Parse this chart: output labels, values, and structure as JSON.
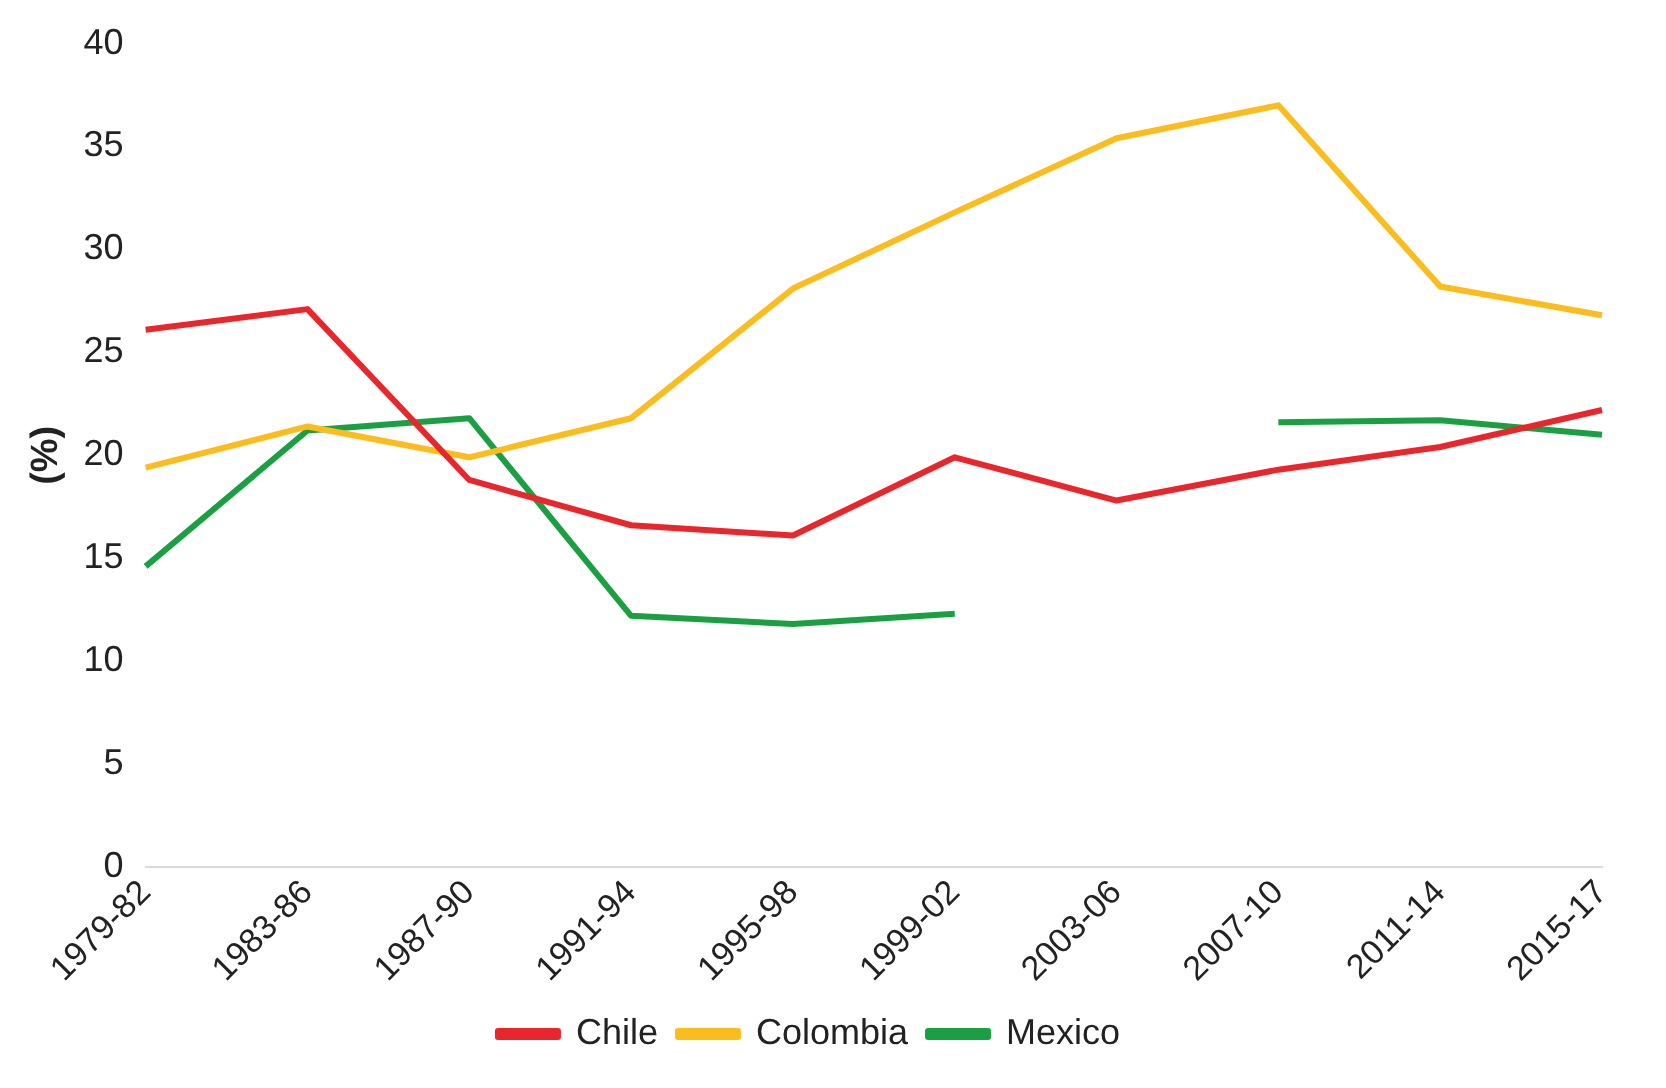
{
  "chart_data": {
    "type": "line",
    "ylabel": "(%)",
    "categories": [
      "1979-82",
      "1983-86",
      "1987-90",
      "1991-94",
      "1995-98",
      "1999-02",
      "2003-06",
      "2007-10",
      "2011-14",
      "2015-17"
    ],
    "series": [
      {
        "name": "Chile",
        "color": "#e8262b",
        "values": [
          26.1,
          27.1,
          18.8,
          16.6,
          16.1,
          19.9,
          17.8,
          19.3,
          20.4,
          22.2
        ]
      },
      {
        "name": "Colombia",
        "color": "#fbbc1e",
        "values": [
          19.4,
          21.4,
          19.9,
          21.8,
          28.1,
          31.8,
          35.4,
          37.0,
          28.2,
          26.8
        ]
      },
      {
        "name": "Mexico",
        "color": "#1aa043",
        "values": [
          14.6,
          21.2,
          21.8,
          12.2,
          11.8,
          12.3,
          null,
          21.6,
          21.7,
          21.0
        ]
      }
    ],
    "ylim": [
      0,
      40
    ],
    "yticks": [
      0,
      5,
      10,
      15,
      20,
      25,
      30,
      35,
      40
    ],
    "grid": false,
    "legend": "bottom",
    "marker": "none",
    "line_style": "solid"
  }
}
